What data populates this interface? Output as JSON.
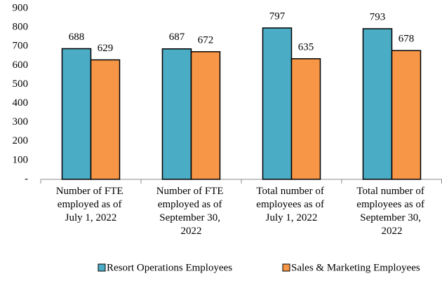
{
  "chart_data": {
    "type": "bar",
    "categories": [
      "Number of FTE employed as of July 1, 2022",
      "Number of FTE employed as of September 30, 2022",
      "Total number of employees as of July 1, 2022",
      "Total number of employees as of September 30, 2022"
    ],
    "series": [
      {
        "name": "Resort Operations Employees",
        "color": "#4bacc6",
        "values": [
          688,
          687,
          797,
          793
        ]
      },
      {
        "name": "Sales & Marketing Employees",
        "color": "#f79646",
        "values": [
          629,
          672,
          635,
          678
        ]
      }
    ],
    "ylim": [
      0,
      900
    ],
    "yticks": [
      {
        "value": 0,
        "label": "-"
      },
      100,
      200,
      300,
      400,
      500,
      600,
      700,
      800,
      900
    ],
    "grid": false,
    "legend": "bottom"
  }
}
